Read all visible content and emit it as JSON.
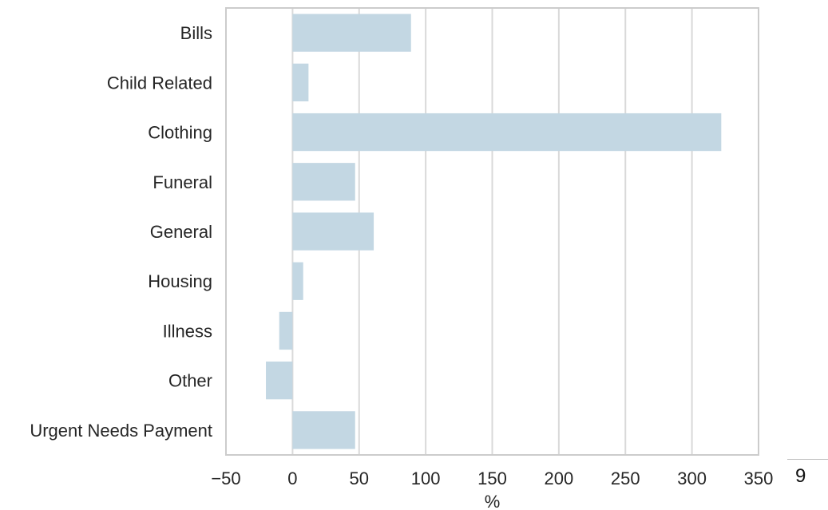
{
  "chart_data": {
    "type": "bar",
    "orientation": "horizontal",
    "categories": [
      "Bills",
      "Child Related",
      "Clothing",
      "Funeral",
      "General",
      "Housing",
      "Illness",
      "Other",
      "Urgent Needs Payment"
    ],
    "values": [
      89,
      12,
      322,
      47,
      61,
      8,
      -10,
      -20,
      47
    ],
    "xlabel": "%",
    "ylabel": "",
    "xlim": [
      -50,
      350
    ],
    "xticks": [
      -50,
      0,
      50,
      100,
      150,
      200,
      250,
      300,
      350
    ],
    "xtick_labels": [
      "−50",
      "0",
      "50",
      "100",
      "150",
      "200",
      "250",
      "300",
      "350"
    ],
    "grid": "vertical",
    "legend": "none",
    "bar_color": "#c3d7e3",
    "grid_color": "#d9d9d9",
    "spine_color": "#cccccc"
  },
  "page": {
    "number": "9"
  }
}
